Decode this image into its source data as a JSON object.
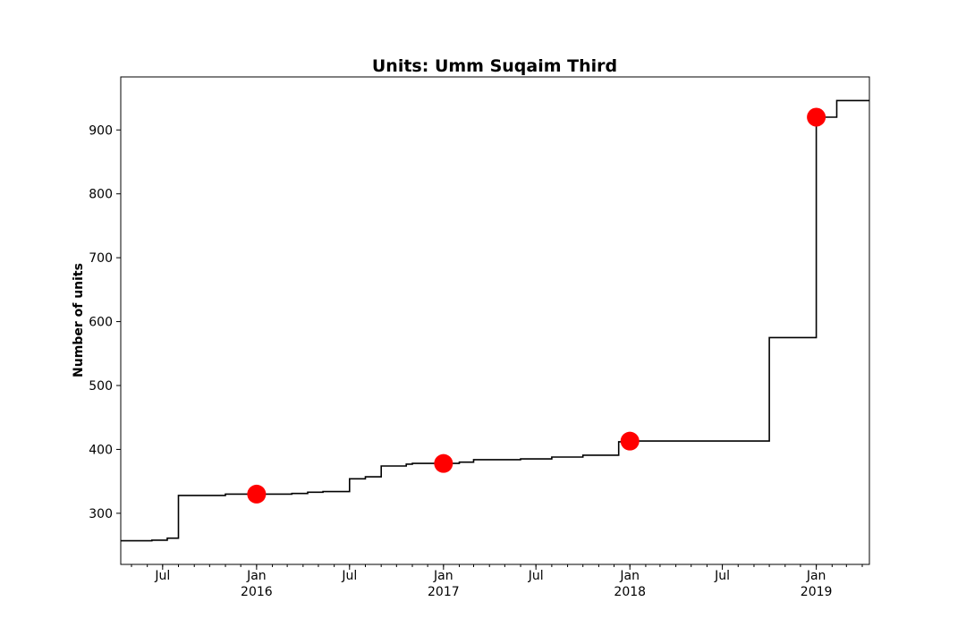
{
  "chart_data": {
    "type": "line",
    "title": "Units: Umm Suqaim Third",
    "xlabel": "",
    "ylabel": "Number of units",
    "ylim": [
      220,
      983
    ],
    "xlim": [
      "2015-04-10",
      "2019-04-15"
    ],
    "grid": false,
    "y_ticks": [
      300,
      400,
      500,
      600,
      700,
      800,
      900
    ],
    "x_ticks": [
      {
        "date": "2015-07-01",
        "label": "Jul",
        "sublabel": ""
      },
      {
        "date": "2016-01-01",
        "label": "Jan",
        "sublabel": "2016"
      },
      {
        "date": "2016-07-01",
        "label": "Jul",
        "sublabel": ""
      },
      {
        "date": "2017-01-01",
        "label": "Jan",
        "sublabel": "2017"
      },
      {
        "date": "2017-07-01",
        "label": "Jul",
        "sublabel": ""
      },
      {
        "date": "2018-01-01",
        "label": "Jan",
        "sublabel": "2018"
      },
      {
        "date": "2018-07-01",
        "label": "Jul",
        "sublabel": ""
      },
      {
        "date": "2019-01-01",
        "label": "Jan",
        "sublabel": "2019"
      }
    ],
    "series": [
      {
        "color": "#000000",
        "step": "post",
        "points": [
          [
            "2015-04-10",
            257
          ],
          [
            "2015-06-10",
            258
          ],
          [
            "2015-07-10",
            261
          ],
          [
            "2015-08-01",
            328
          ],
          [
            "2015-11-01",
            330
          ],
          [
            "2016-03-10",
            331
          ],
          [
            "2016-04-10",
            333
          ],
          [
            "2016-05-10",
            334
          ],
          [
            "2016-07-01",
            354
          ],
          [
            "2016-08-01",
            357
          ],
          [
            "2016-09-01",
            374
          ],
          [
            "2016-10-20",
            377
          ],
          [
            "2016-11-01",
            378
          ],
          [
            "2017-02-01",
            380
          ],
          [
            "2017-03-01",
            384
          ],
          [
            "2017-06-01",
            385
          ],
          [
            "2017-08-01",
            388
          ],
          [
            "2017-10-01",
            391
          ],
          [
            "2017-12-10",
            412
          ],
          [
            "2018-01-01",
            413
          ],
          [
            "2018-10-01",
            575
          ],
          [
            "2019-01-01",
            920
          ],
          [
            "2019-02-10",
            946
          ],
          [
            "2019-04-15",
            946
          ]
        ]
      }
    ],
    "markers": {
      "color": "#ff0000",
      "points": [
        [
          "2016-01-01",
          330
        ],
        [
          "2017-01-01",
          378
        ],
        [
          "2018-01-01",
          413
        ],
        [
          "2019-01-01",
          920
        ]
      ]
    }
  }
}
